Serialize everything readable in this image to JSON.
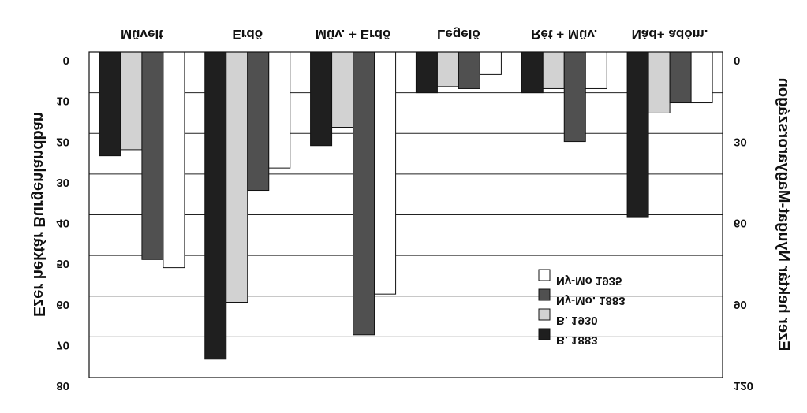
{
  "chart_data": {
    "type": "bar",
    "orientation": "vertical",
    "y_inverted": true,
    "image_mirrored_vertically": true,
    "categories": [
      "Művelt",
      "Erdő",
      "Műv. + Erdő",
      "Legelő",
      "Rét + Műv.",
      "Nád+ adóm."
    ],
    "series": [
      {
        "name": "B. 1883",
        "color": "#1f1f1f",
        "values": [
          25.5,
          75.5,
          23,
          10,
          10,
          40.5
        ]
      },
      {
        "name": "B. 1930",
        "color": "#d2d2d2",
        "values": [
          24,
          61.5,
          18.5,
          8.5,
          9,
          15
        ]
      },
      {
        "name": "Ny-Mo. 1883",
        "color": "#505050",
        "values": [
          51,
          34,
          69.5,
          9,
          22,
          12.5
        ]
      },
      {
        "name": "Ny-Mo 1935",
        "color": "#ffffff",
        "values": [
          53,
          28.5,
          59.5,
          5.5,
          9,
          12.5
        ]
      }
    ],
    "left_axis": {
      "label": "Ezer hektár Burgenlandban",
      "range": [
        0,
        80
      ],
      "ticks": [
        "0",
        "10",
        "20",
        "30",
        "40",
        "50",
        "60",
        "70",
        "80"
      ]
    },
    "right_axis": {
      "label": "Ezer hektár Nyugat-Magyarországon",
      "range": [
        0,
        120
      ],
      "ticks": [
        "0",
        "30",
        "60",
        "90",
        "120"
      ]
    },
    "grid": true,
    "legend_position": "bottom-right"
  }
}
